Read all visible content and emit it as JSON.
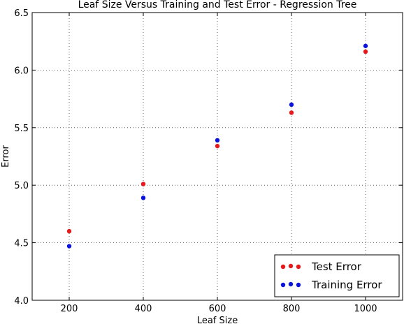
{
  "chart_data": {
    "type": "scatter",
    "title": "Leaf Size Versus Training and Test Error - Regression Tree",
    "xlabel": "Leaf Size",
    "ylabel": "Error",
    "xlim": [
      100,
      1100
    ],
    "ylim": [
      4.0,
      6.5
    ],
    "xticks": [
      200,
      400,
      600,
      800,
      1000
    ],
    "yticks": [
      4.0,
      4.5,
      5.0,
      5.5,
      6.0,
      6.5
    ],
    "xtick_labels": [
      "200",
      "400",
      "600",
      "800",
      "1000"
    ],
    "ytick_labels": [
      "4.0",
      "4.5",
      "5.0",
      "5.5",
      "6.0",
      "6.5"
    ],
    "grid": true,
    "legend_position": "bottom-right",
    "series": [
      {
        "name": "Test Error",
        "color": "#e41a1c",
        "x": [
          200,
          400,
          600,
          800,
          1000
        ],
        "y": [
          4.6,
          5.01,
          5.34,
          5.63,
          6.16
        ]
      },
      {
        "name": "Training Error",
        "color": "#0a14d8",
        "x": [
          200,
          400,
          600,
          800,
          1000
        ],
        "y": [
          4.47,
          4.89,
          5.39,
          5.7,
          6.21
        ]
      }
    ]
  }
}
